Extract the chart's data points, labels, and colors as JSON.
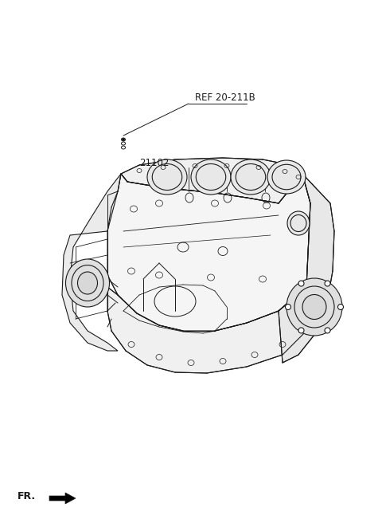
{
  "bg_color": "#ffffff",
  "line_color": "#1a1a1a",
  "label_ref": "REF 20-211B",
  "label_part": "21102",
  "label_fr": "FR.",
  "title_fontsize": 8.5,
  "part_fontsize": 8.5,
  "fr_fontsize": 9
}
